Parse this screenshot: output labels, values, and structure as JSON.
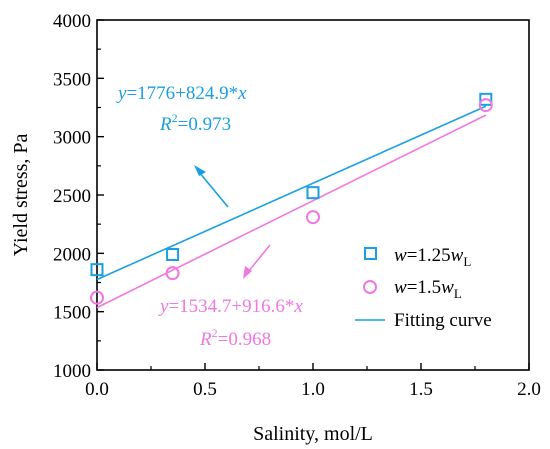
{
  "chart_data": {
    "type": "scatter",
    "xlabel": "Salinity, mol/L",
    "ylabel": "Yield stress, Pa",
    "xlim": [
      0.0,
      2.0
    ],
    "ylim": [
      1000,
      4000
    ],
    "x_ticks": [
      "0.0",
      "0.5",
      "1.0",
      "1.5",
      "2.0"
    ],
    "y_ticks": [
      "1000",
      "1500",
      "2000",
      "2500",
      "3000",
      "3500",
      "4000"
    ],
    "grid": false,
    "legend_position": "right",
    "series": [
      {
        "name_prefix": "w",
        "name_middle": "=1.25",
        "name_var": "w",
        "name_sub": "L",
        "marker": "square",
        "color": "#1a9fe0",
        "x": [
          0.0,
          0.35,
          1.0,
          1.8
        ],
        "y": [
          1860,
          1990,
          2520,
          3320
        ]
      },
      {
        "name_prefix": "w",
        "name_middle": "=1.5",
        "name_var": "w",
        "name_sub": "L",
        "marker": "circle",
        "color": "#f277e0",
        "x": [
          0.0,
          0.35,
          1.0,
          1.8
        ],
        "y": [
          1620,
          1830,
          2310,
          3270
        ]
      }
    ],
    "fits": [
      {
        "intercept": 1776,
        "slope": 824.9,
        "x_range": [
          0.0,
          1.8
        ],
        "color": "#1a9fe0",
        "eq_var": "y",
        "eq_text": "=1776+824.9*",
        "eq_x": "x",
        "r2_label": "R",
        "r2_sup": "2",
        "r2_value": "=0.973"
      },
      {
        "intercept": 1534.7,
        "slope": 916.6,
        "x_range": [
          0.0,
          1.8
        ],
        "color": "#f277e0",
        "eq_var": "y",
        "eq_text": "=1534.7+916.6*",
        "eq_x": "x",
        "r2_label": "R",
        "r2_sup": "2",
        "r2_value": "=0.968"
      }
    ],
    "legend_fit_label": "Fitting curve",
    "legend_fit_color": "#1a9fe0"
  }
}
